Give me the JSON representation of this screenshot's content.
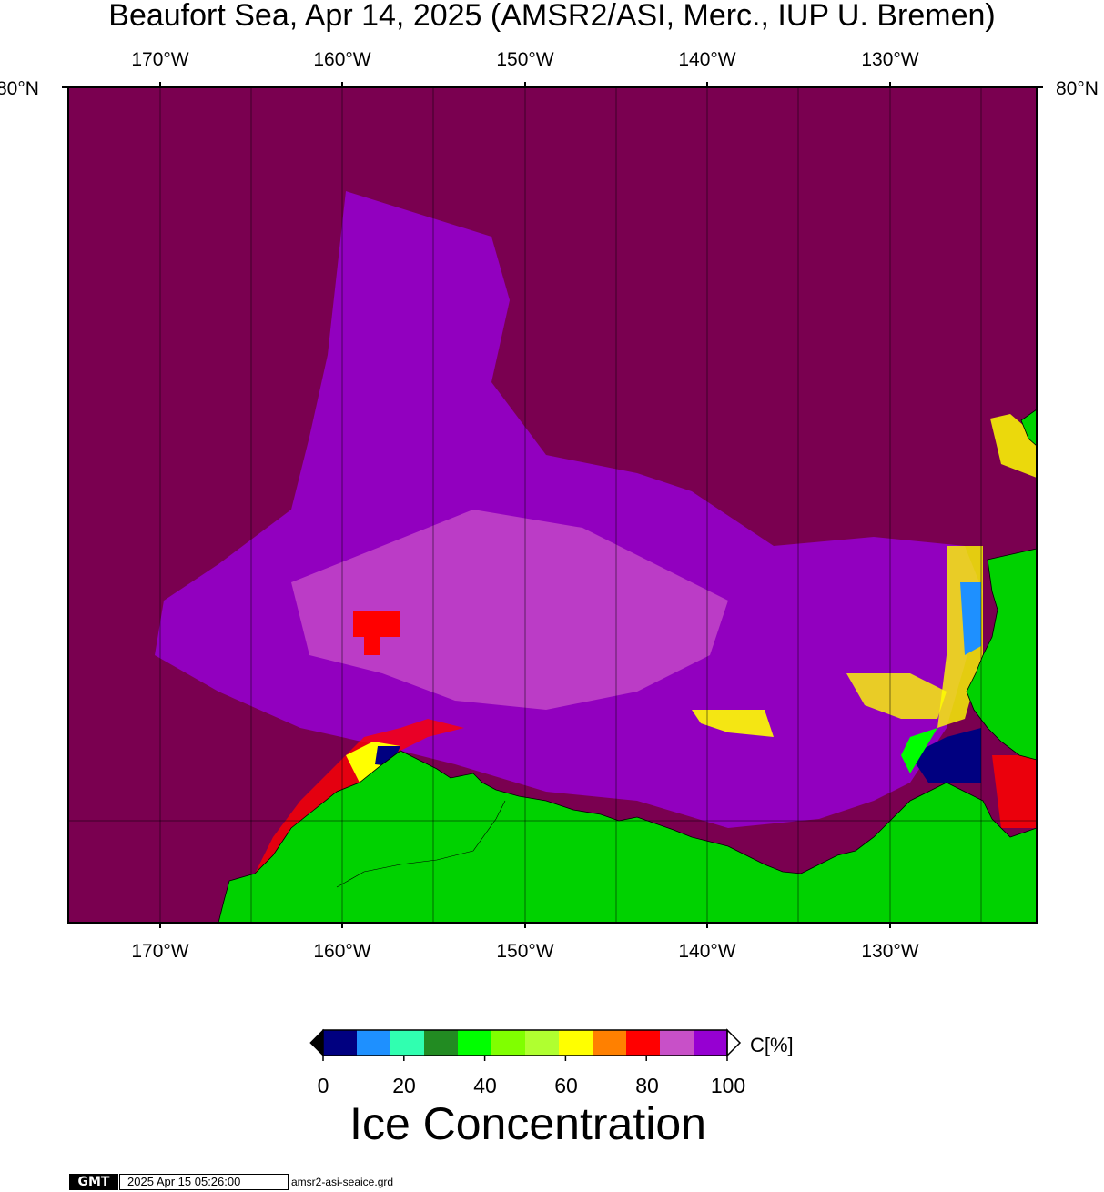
{
  "title": "Beaufort Sea, Apr 14, 2025 (AMSR2/ASI, Merc., IUP U. Bremen)",
  "map": {
    "lon_labels": [
      "170°W",
      "160°W",
      "150°W",
      "140°W",
      "130°W"
    ],
    "lat_label": "80°N",
    "colors": {
      "sea_ice_full": "#7a0050",
      "ice_high": "#9600d2",
      "ice_mid": "#c850c8",
      "land": "#00d200",
      "red": "#ff0000",
      "yellow": "#ffff00",
      "open_water": "#000080",
      "graticule": "#000000"
    }
  },
  "colorbar": {
    "colors": [
      "#000080",
      "#1e90ff",
      "#30ffb0",
      "#228b22",
      "#00ff00",
      "#80ff00",
      "#b0ff30",
      "#ffff00",
      "#ff8000",
      "#ff0000",
      "#c850c8",
      "#9600d2"
    ],
    "tick_labels": [
      "0",
      "20",
      "40",
      "60",
      "80",
      "100"
    ],
    "unit": "C[%]",
    "title": "Ice Concentration"
  },
  "footer": {
    "logo": "GMT",
    "timestamp": "2025 Apr 15 05:26:00",
    "filename": "amsr2-asi-seaice.grd"
  }
}
